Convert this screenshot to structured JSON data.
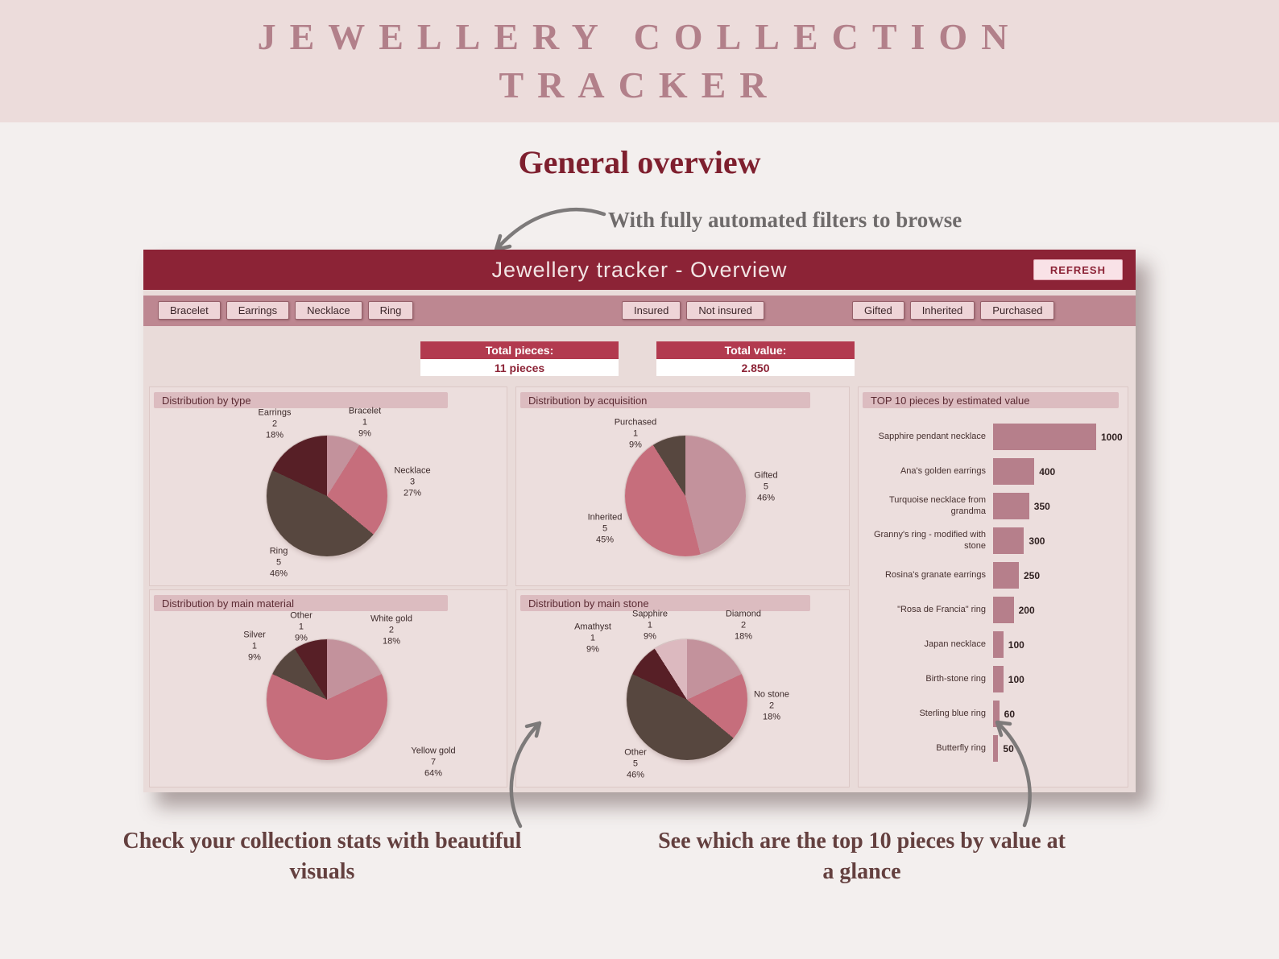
{
  "banner": {
    "title": "JEWELLERY COLLECTION TRACKER"
  },
  "page": {
    "heading": "General overview",
    "annotation_top": "With fully automated filters to browse",
    "caption_left": "Check your collection stats with beautiful visuals",
    "caption_right": "See which are the top 10 pieces by value at a glance"
  },
  "dashboard": {
    "title": "Jewellery tracker - Overview",
    "refresh_label": "REFRESH",
    "filters": {
      "type": [
        "Bracelet",
        "Earrings",
        "Necklace",
        "Ring"
      ],
      "insurance": [
        "Insured",
        "Not insured"
      ],
      "acquisition": [
        "Gifted",
        "Inherited",
        "Purchased"
      ]
    },
    "stats": [
      {
        "label": "Total pieces:",
        "value": "11 pieces"
      },
      {
        "label": "Total value:",
        "value": "2.850"
      }
    ]
  },
  "colors": {
    "header": "#8c2336",
    "accent": "#b23a4f",
    "filter_bar": "#bd8791",
    "pie_mauve": "#c3929c",
    "pie_rose": "#c66e7c",
    "pie_taupe": "#57473f",
    "pie_maroon": "#571f26",
    "pie_pale": "#dcb9bf"
  },
  "chart_data": [
    {
      "type": "pie",
      "title": "Distribution by type",
      "slices": [
        {
          "label": "Bracelet",
          "value": 1,
          "pct": "9%",
          "color": "#c3929c",
          "label_pos": {
            "x": 267,
            "y": 44
          }
        },
        {
          "label": "Necklace",
          "value": 3,
          "pct": "27%",
          "color": "#c66e7c",
          "label_pos": {
            "x": 326,
            "y": 118
          }
        },
        {
          "label": "Ring",
          "value": 5,
          "pct": "46%",
          "color": "#57473f",
          "label_pos": {
            "x": 160,
            "y": 218
          }
        },
        {
          "label": "Earrings",
          "value": 2,
          "pct": "18%",
          "color": "#571f26",
          "label_pos": {
            "x": 155,
            "y": 46
          }
        }
      ]
    },
    {
      "type": "pie",
      "title": "Distribution by acquisition",
      "slices": [
        {
          "label": "Gifted",
          "value": 5,
          "pct": "46%",
          "color": "#c3929c",
          "label_pos": {
            "x": 310,
            "y": 124
          }
        },
        {
          "label": "Inherited",
          "value": 5,
          "pct": "45%",
          "color": "#c66e7c",
          "label_pos": {
            "x": 110,
            "y": 176
          }
        },
        {
          "label": "Purchased",
          "value": 1,
          "pct": "9%",
          "color": "#57473f",
          "label_pos": {
            "x": 148,
            "y": 58
          }
        }
      ]
    },
    {
      "type": "pie",
      "title": "Distribution by main material",
      "slices": [
        {
          "label": "White gold",
          "value": 2,
          "pct": "18%",
          "color": "#c3929c",
          "label_pos": {
            "x": 300,
            "y": 50
          }
        },
        {
          "label": "Yellow gold",
          "value": 7,
          "pct": "64%",
          "color": "#c66e7c",
          "label_pos": {
            "x": 352,
            "y": 214
          }
        },
        {
          "label": "Silver",
          "value": 1,
          "pct": "9%",
          "color": "#57473f",
          "label_pos": {
            "x": 130,
            "y": 70
          }
        },
        {
          "label": "Other",
          "value": 1,
          "pct": "9%",
          "color": "#571f26",
          "label_pos": {
            "x": 188,
            "y": 46
          }
        }
      ]
    },
    {
      "type": "pie",
      "title": "Distribution by main stone",
      "slices": [
        {
          "label": "Diamond",
          "value": 2,
          "pct": "18%",
          "color": "#c3929c",
          "label_pos": {
            "x": 282,
            "y": 44
          }
        },
        {
          "label": "No stone",
          "value": 2,
          "pct": "18%",
          "color": "#c66e7c",
          "label_pos": {
            "x": 317,
            "y": 144
          }
        },
        {
          "label": "Other",
          "value": 5,
          "pct": "46%",
          "color": "#57473f",
          "label_pos": {
            "x": 148,
            "y": 216
          }
        },
        {
          "label": "Amathyst",
          "value": 1,
          "pct": "9%",
          "color": "#571f26",
          "label_pos": {
            "x": 95,
            "y": 60
          }
        },
        {
          "label": "Sapphire",
          "value": 1,
          "pct": "9%",
          "color": "#dcb9bf",
          "label_pos": {
            "x": 166,
            "y": 44
          }
        }
      ]
    },
    {
      "type": "bar",
      "title": "TOP 10 pieces by estimated value",
      "categories": [
        "Sapphire pendant necklace",
        "Ana's golden earrings",
        "Turquoise necklace from grandma",
        "Granny's ring - modified with stone",
        "Rosina's granate earrings",
        "\"Rosa de Francia\" ring",
        "Japan necklace",
        "Birth-stone ring",
        "Sterling blue ring",
        "Butterfly ring"
      ],
      "values": [
        1000,
        400,
        350,
        300,
        250,
        200,
        100,
        100,
        60,
        50
      ],
      "xlim": [
        0,
        1000
      ],
      "bar_color": "#b67f8b",
      "legend": "none",
      "grid": false
    }
  ]
}
